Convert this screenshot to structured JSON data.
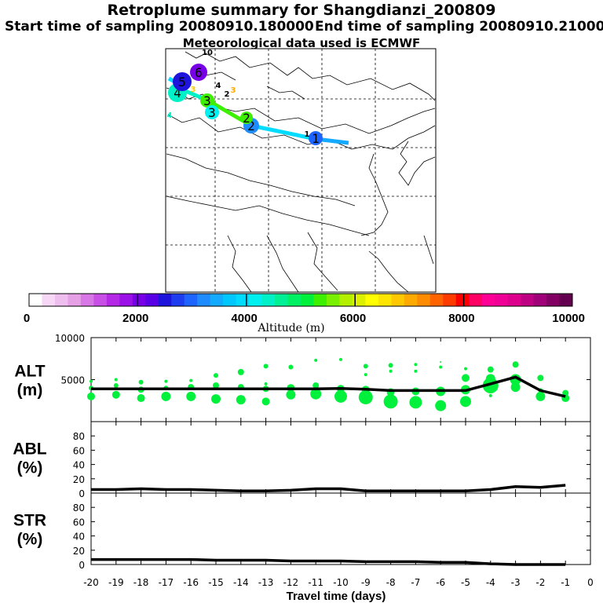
{
  "header": {
    "title": "Retroplume summary for Shangdianzi_200809",
    "start_label": "Start time of sampling 20080910.180000",
    "end_label": "End time of sampling 20080910.210000",
    "met_label": "Meteorological data used is ECMWF"
  },
  "colorbar": {
    "xlabel": "Altitude (m)",
    "ticks": [
      "0",
      "2000",
      "4000",
      "6000",
      "8000",
      "10000"
    ],
    "colors": [
      "#ffffff",
      "#f6d8f6",
      "#eebeee",
      "#e6a0e6",
      "#d878e6",
      "#c850e6",
      "#b428e6",
      "#9a10e6",
      "#7800e6",
      "#5a00e6",
      "#1e14dc",
      "#1e3cf0",
      "#1e64ff",
      "#1e8cff",
      "#14aaff",
      "#00c8ff",
      "#00dcff",
      "#00f0f0",
      "#00f0c8",
      "#00f096",
      "#00f064",
      "#00f03c",
      "#3cf000",
      "#78f000",
      "#b4f000",
      "#dcf000",
      "#ffff00",
      "#ffe600",
      "#ffc800",
      "#ffaa00",
      "#ff8c00",
      "#ff6400",
      "#ff3c00",
      "#ff0000",
      "#ff0064",
      "#ff0096",
      "#f00096",
      "#dc008c",
      "#be0082",
      "#a00078",
      "#820064",
      "#640050"
    ]
  },
  "map": {
    "points": [
      {
        "label": "1",
        "color": "#1e64ff"
      },
      {
        "label": "2",
        "color": "#1e8cff"
      },
      {
        "label": "2",
        "color": "#3cf000"
      },
      {
        "label": "3",
        "color": "#3cf000"
      },
      {
        "label": "3",
        "color": "#00f0f0"
      },
      {
        "label": "4",
        "color": "#00f0c8"
      },
      {
        "label": "5",
        "color": "#1e14dc"
      },
      {
        "label": "6",
        "color": "#7800e6"
      },
      {
        "label": "10",
        "color": "#000000"
      },
      {
        "label": "2",
        "color": "#000000"
      },
      {
        "label": "3",
        "color": "#ffaa00"
      },
      {
        "label": "4",
        "color": "#000000"
      },
      {
        "label": "1",
        "color": "#000000"
      },
      {
        "label": "4",
        "color": "#00f0c8"
      },
      {
        "label": "3",
        "color": "#ffc800"
      }
    ]
  },
  "chart_data": [
    {
      "type": "line",
      "name": "ALT",
      "ylabel": "ALT\n(m)",
      "ylabel_line1": "ALT",
      "ylabel_line2": "(m)",
      "ylim": [
        0,
        10000
      ],
      "yticks": [
        "5000",
        "10000"
      ],
      "x": [
        -20,
        -19,
        -18,
        -17,
        -16,
        -15,
        -14,
        -13,
        -12,
        -11,
        -10,
        -9,
        -8,
        -7,
        -6,
        -5,
        -4,
        -3,
        -2,
        -1
      ],
      "values": [
        3900,
        3900,
        3900,
        3900,
        3900,
        3900,
        3900,
        3900,
        3900,
        3900,
        3950,
        3850,
        3700,
        3700,
        3700,
        3700,
        4500,
        5300,
        3700,
        3000
      ],
      "clusters": [
        [
          [
            3000,
            5
          ],
          [
            4000,
            3
          ],
          [
            4800,
            2
          ]
        ],
        [
          [
            3200,
            5
          ],
          [
            4300,
            3
          ],
          [
            5000,
            2
          ]
        ],
        [
          [
            2800,
            5
          ],
          [
            3800,
            4
          ],
          [
            4700,
            3
          ]
        ],
        [
          [
            3000,
            6
          ],
          [
            4000,
            3
          ],
          [
            4800,
            2
          ]
        ],
        [
          [
            3000,
            6
          ],
          [
            4100,
            4
          ],
          [
            4900,
            2
          ]
        ],
        [
          [
            2700,
            6
          ],
          [
            4300,
            4
          ],
          [
            5500,
            3
          ]
        ],
        [
          [
            2600,
            6
          ],
          [
            4100,
            4
          ],
          [
            5900,
            4
          ]
        ],
        [
          [
            2400,
            5
          ],
          [
            3900,
            4
          ],
          [
            4500,
            2
          ],
          [
            6600,
            3
          ]
        ],
        [
          [
            3200,
            6
          ],
          [
            4000,
            5
          ],
          [
            6500,
            3
          ]
        ],
        [
          [
            3300,
            7
          ],
          [
            4300,
            4
          ],
          [
            7300,
            2
          ]
        ],
        [
          [
            3000,
            8
          ],
          [
            3900,
            5
          ],
          [
            7400,
            2
          ]
        ],
        [
          [
            2900,
            9
          ],
          [
            3800,
            5
          ],
          [
            5600,
            2
          ],
          [
            6600,
            3
          ]
        ],
        [
          [
            2400,
            9
          ],
          [
            3500,
            5
          ],
          [
            6000,
            2
          ],
          [
            6700,
            3
          ]
        ],
        [
          [
            2300,
            8
          ],
          [
            3600,
            5
          ],
          [
            6000,
            2
          ],
          [
            6800,
            2
          ]
        ],
        [
          [
            1900,
            7
          ],
          [
            3600,
            6
          ],
          [
            6500,
            2
          ],
          [
            7100,
            1
          ]
        ],
        [
          [
            2400,
            7
          ],
          [
            3800,
            6
          ],
          [
            5200,
            5
          ],
          [
            6300,
            2
          ]
        ],
        [
          [
            4300,
            10
          ],
          [
            5100,
            6
          ],
          [
            3100,
            2
          ],
          [
            6200,
            4
          ]
        ],
        [
          [
            5000,
            7
          ],
          [
            6800,
            4
          ],
          [
            4100,
            6
          ]
        ],
        [
          [
            3000,
            6
          ],
          [
            5200,
            4
          ],
          [
            3700,
            3
          ]
        ],
        [
          [
            2800,
            5
          ],
          [
            3400,
            4
          ]
        ]
      ]
    },
    {
      "type": "line",
      "name": "ABL",
      "ylabel": "ABL\n(%)",
      "ylabel_line1": "ABL",
      "ylabel_line2": "(%)",
      "ylim": [
        0,
        100
      ],
      "yticks": [
        "0",
        "20",
        "40",
        "60",
        "80"
      ],
      "x": [
        -20,
        -19,
        -18,
        -17,
        -16,
        -15,
        -14,
        -13,
        -12,
        -11,
        -10,
        -9,
        -8,
        -7,
        -6,
        -5,
        -4,
        -3,
        -2,
        -1
      ],
      "values": [
        5,
        5,
        6,
        5,
        5,
        4,
        3,
        3,
        4,
        6,
        6,
        3,
        3,
        3,
        3,
        3,
        5,
        9,
        8,
        11
      ]
    },
    {
      "type": "line",
      "name": "STR",
      "ylabel": "STR\n(%)",
      "ylabel_line1": "STR",
      "ylabel_line2": "(%)",
      "ylim": [
        0,
        100
      ],
      "yticks": [
        "0",
        "20",
        "40",
        "60",
        "80"
      ],
      "x": [
        -20,
        -19,
        -18,
        -17,
        -16,
        -15,
        -14,
        -13,
        -12,
        -11,
        -10,
        -9,
        -8,
        -7,
        -6,
        -5,
        -4,
        -3,
        -2,
        -1
      ],
      "values": [
        7,
        7,
        7,
        7,
        7,
        6,
        6,
        6,
        5,
        5,
        5,
        4,
        4,
        4,
        3,
        3,
        1,
        0,
        0,
        0
      ]
    }
  ],
  "xaxis": {
    "xlabel": "Travel time (days)",
    "ticks": [
      "-20",
      "-19",
      "-18",
      "-17",
      "-16",
      "-15",
      "-14",
      "-13",
      "-12",
      "-11",
      "-10",
      "-9",
      "-8",
      "-7",
      "-6",
      "-5",
      "-4",
      "-3",
      "-2",
      "-1",
      "0"
    ]
  }
}
